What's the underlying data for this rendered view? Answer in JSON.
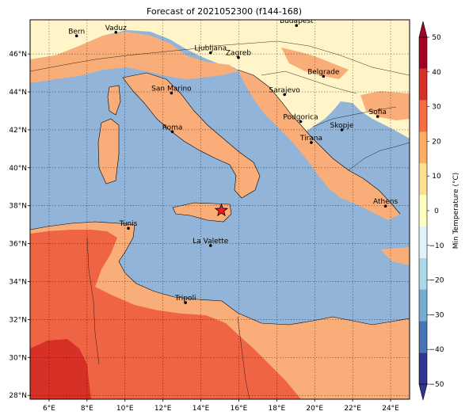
{
  "title": "Forecast of 2021052300 (f144-168)",
  "colorbar": {
    "label": "Min Temperature (°C)",
    "ticks": [
      "50",
      "40",
      "30",
      "20",
      "10",
      "0",
      "−10",
      "−20",
      "−30",
      "−40",
      "−50"
    ],
    "colors": [
      "#313695",
      "#4575b4",
      "#74add1",
      "#abd9e9",
      "#e0f3f8",
      "#ffffbf",
      "#fee090",
      "#fdae61",
      "#f46d43",
      "#d73027",
      "#a50026"
    ]
  },
  "x_ticks": [
    "6°E",
    "8°E",
    "10°E",
    "12°E",
    "14°E",
    "16°E",
    "18°E",
    "20°E",
    "22°E",
    "24°E"
  ],
  "y_ticks": [
    "46°N",
    "44°N",
    "42°N",
    "40°N",
    "38°N",
    "36°N",
    "34°N",
    "32°N",
    "30°N",
    "28°N"
  ],
  "cities": [
    {
      "name": "Bern",
      "lon": 7.45,
      "lat": 46.95
    },
    {
      "name": "Vaduz",
      "lon": 9.52,
      "lat": 47.14
    },
    {
      "name": "Budapest",
      "lon": 19.04,
      "lat": 47.5
    },
    {
      "name": "Ljubljana",
      "lon": 14.51,
      "lat": 46.06
    },
    {
      "name": "Zagreb",
      "lon": 15.98,
      "lat": 45.81
    },
    {
      "name": "Belgrade",
      "lon": 20.46,
      "lat": 44.82
    },
    {
      "name": "San Marino",
      "lon": 12.45,
      "lat": 43.94
    },
    {
      "name": "Sarajevo",
      "lon": 18.41,
      "lat": 43.86
    },
    {
      "name": "Sofia",
      "lon": 23.32,
      "lat": 42.7
    },
    {
      "name": "Podgorica",
      "lon": 19.26,
      "lat": 42.44
    },
    {
      "name": "Skopje",
      "lon": 21.43,
      "lat": 42.0
    },
    {
      "name": "Roma",
      "lon": 12.5,
      "lat": 41.9
    },
    {
      "name": "Tirana",
      "lon": 19.82,
      "lat": 41.33
    },
    {
      "name": "Athens",
      "lon": 23.73,
      "lat": 37.98
    },
    {
      "name": "Tunis",
      "lon": 10.18,
      "lat": 36.81
    },
    {
      "name": "La Valette",
      "lon": 14.51,
      "lat": 35.9
    },
    {
      "name": "Tripoli",
      "lon": 13.19,
      "lat": 32.89
    }
  ],
  "marker": {
    "lon": 15.08,
    "lat": 37.75,
    "color": "#e8202a"
  },
  "extent": {
    "lon": [
      5.0,
      25.0
    ],
    "lat": [
      27.8,
      47.8
    ]
  },
  "fill_colors": {
    "sea": "#92b4d8",
    "warm": "#f9ae79",
    "cool": "#fff5c8",
    "hot": "#ef6443",
    "hotter": "#d73027"
  }
}
